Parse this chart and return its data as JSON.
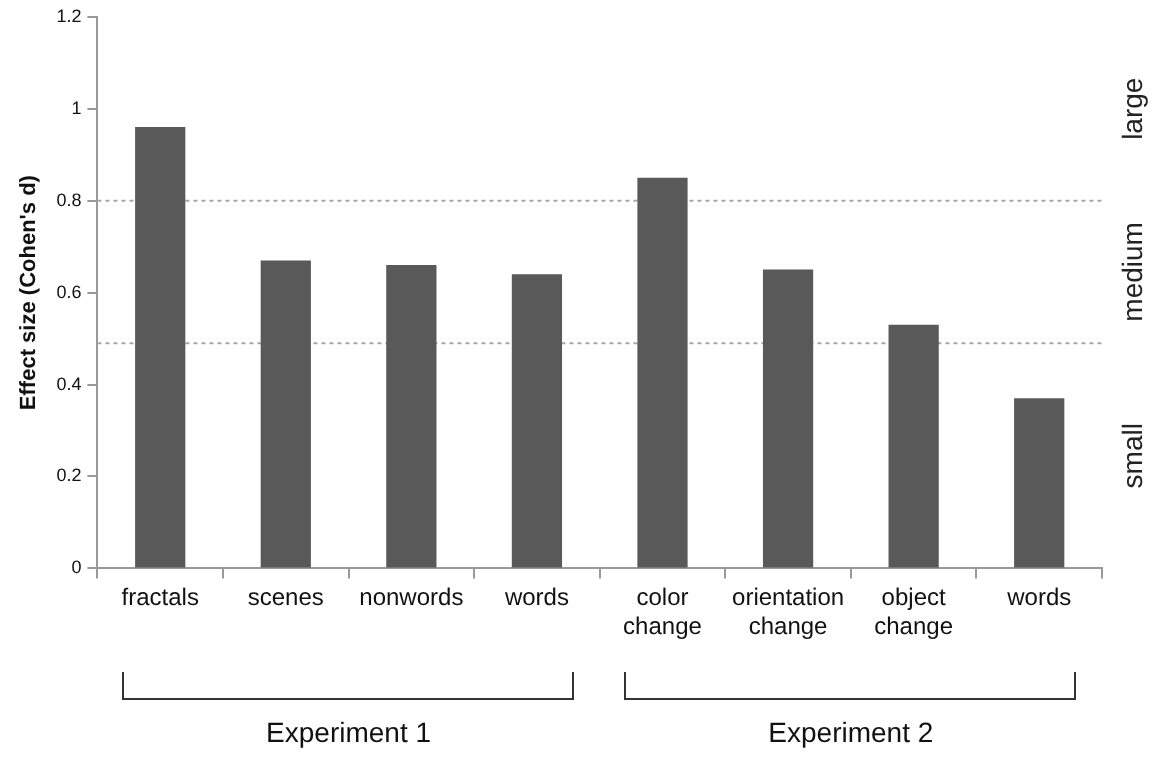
{
  "chart_data": {
    "type": "bar",
    "ylabel": "Effect size (Cohen's d)",
    "categories": [
      "fractals",
      "scenes",
      "nonwords",
      "words",
      "color change",
      "orientation change",
      "object change",
      "words"
    ],
    "values": [
      0.96,
      0.67,
      0.66,
      0.64,
      0.85,
      0.65,
      0.53,
      0.37
    ],
    "color": "#595959",
    "ylim": [
      0,
      1.2
    ],
    "yticks": [
      0,
      0.2,
      0.4,
      0.6,
      0.8,
      1,
      1.2
    ],
    "grid": false,
    "ref_lines": [
      {
        "axis": "y",
        "value": 0.8,
        "color": "#a6a6a6",
        "line_style": "dotted"
      },
      {
        "axis": "y",
        "value": 0.49,
        "color": "#a6a6a6",
        "line_style": "dotted"
      }
    ],
    "annotations": [
      "Experiment 1",
      "Experiment 2",
      "large",
      "medium",
      "small"
    ]
  }
}
